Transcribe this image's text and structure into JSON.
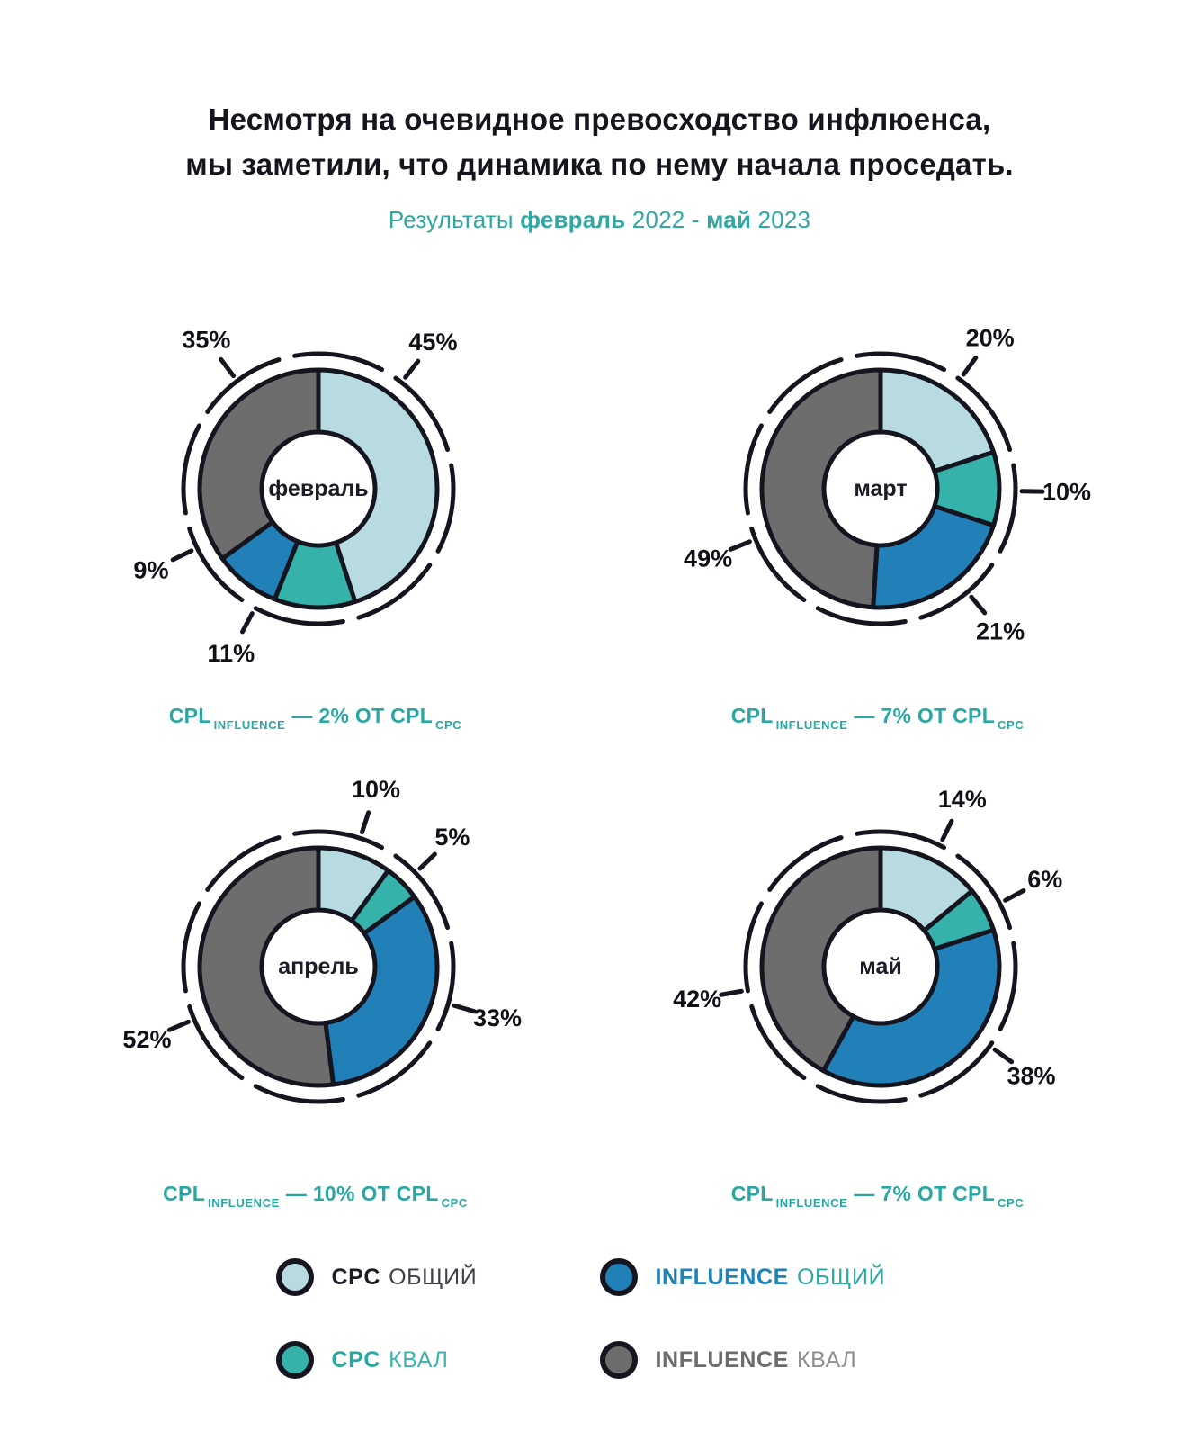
{
  "title": {
    "line1": "Несмотря на очевидное превосходство инфлюенса,",
    "line2": "мы заметили, что динамика по нему начала проседать."
  },
  "subtitle": {
    "prefix": "Результаты",
    "month1": "февраль",
    "mid": "2022 -",
    "month2": "май",
    "year2": "2023"
  },
  "colors": {
    "cpc_total": "#b7dbe0",
    "cpc_qual": "#35b3ab",
    "influence_total": "#2280b8",
    "influence_qual": "#6d6d6d",
    "accent": "#29a7a2",
    "ink": "#15151f"
  },
  "chart_data": [
    {
      "type": "pie",
      "title": "февраль",
      "unit": "%",
      "start_angle": 0,
      "slices": [
        {
          "label": "CPC общий",
          "value": 45,
          "color_key": "cpc_total",
          "label_angle": 38
        },
        {
          "label": "CPC квал",
          "value": 11,
          "color_key": "cpc_qual",
          "label_angle": 208
        },
        {
          "label": "INFLUENCE общий",
          "value": 9,
          "color_key": "influence_total",
          "label_angle": 244
        },
        {
          "label": "INFLUENCE квал",
          "value": 35,
          "color_key": "influence_qual",
          "label_angle": 323
        }
      ],
      "caption": {
        "pre": "CPL",
        "sub1": "INFLUENCE",
        "mid": "— 2% ОТ CPL",
        "sub2": "CPC"
      }
    },
    {
      "type": "pie",
      "title": "март",
      "unit": "%",
      "start_angle": 0,
      "slices": [
        {
          "label": "CPC общий",
          "value": 20,
          "color_key": "cpc_total",
          "label_angle": 36
        },
        {
          "label": "CPC квал",
          "value": 10,
          "color_key": "cpc_qual",
          "label_angle": 91
        },
        {
          "label": "INFLUENCE общий",
          "value": 21,
          "color_key": "influence_total",
          "label_angle": 140
        },
        {
          "label": "INFLUENCE квал",
          "value": 49,
          "color_key": "influence_qual",
          "label_angle": 248
        }
      ],
      "caption": {
        "pre": "CPL",
        "sub1": "INFLUENCE",
        "mid": "— 7% ОТ CPL",
        "sub2": "CPC"
      }
    },
    {
      "type": "pie",
      "title": "апрель",
      "unit": "%",
      "start_angle": 0,
      "slices": [
        {
          "label": "CPC общий",
          "value": 10,
          "color_key": "cpc_total",
          "label_angle": 18
        },
        {
          "label": "CPC квал",
          "value": 5,
          "color_key": "cpc_qual",
          "label_angle": 46
        },
        {
          "label": "INFLUENCE общий",
          "value": 33,
          "color_key": "influence_total",
          "label_angle": 106
        },
        {
          "label": "INFLUENCE квал",
          "value": 52,
          "color_key": "influence_qual",
          "label_angle": 247
        }
      ],
      "caption": {
        "pre": "CPL",
        "sub1": "INFLUENCE",
        "mid": "— 10% ОТ CPL",
        "sub2": "CPC"
      }
    },
    {
      "type": "pie",
      "title": "май",
      "unit": "%",
      "start_angle": 0,
      "slices": [
        {
          "label": "CPC общий",
          "value": 14,
          "color_key": "cpc_total",
          "label_angle": 26
        },
        {
          "label": "CPC квал",
          "value": 6,
          "color_key": "cpc_qual",
          "label_angle": 62
        },
        {
          "label": "INFLUENCE общий",
          "value": 38,
          "color_key": "influence_total",
          "label_angle": 126
        },
        {
          "label": "INFLUENCE квал",
          "value": 42,
          "color_key": "influence_qual",
          "label_angle": 260
        }
      ],
      "caption": {
        "pre": "CPL",
        "sub1": "INFLUENCE",
        "mid": "— 7% ОТ CPL",
        "sub2": "CPC"
      }
    }
  ],
  "legend": [
    {
      "bold": "CPC",
      "rest": "ОБЩИЙ",
      "color_key": "cpc_total"
    },
    {
      "bold": "INFLUENCE",
      "rest": "ОБЩИЙ",
      "color_key": "influence_total"
    },
    {
      "bold": "CPC",
      "rest": "КВАЛ",
      "color_key": "cpc_qual"
    },
    {
      "bold": "INFLUENCE",
      "rest": "КВАЛ",
      "color_key": "influence_qual"
    }
  ]
}
